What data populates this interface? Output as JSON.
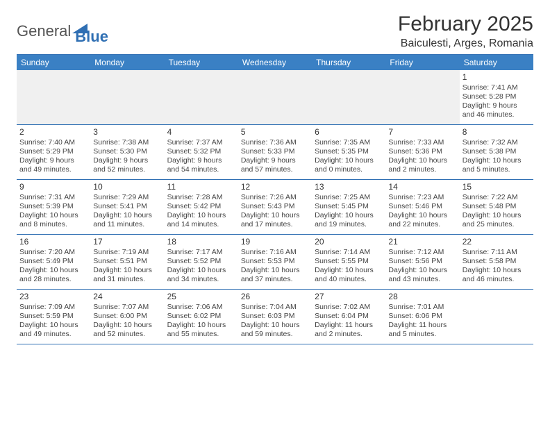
{
  "brand": {
    "word1": "General",
    "word2": "Blue"
  },
  "title": "February 2025",
  "location": "Baiculesti, Arges, Romania",
  "colors": {
    "header_bg": "#3a80c4",
    "header_text": "#ffffff",
    "rule": "#2f6fb3",
    "body_text": "#444444",
    "empty_row_bg": "#f0f0f0"
  },
  "day_names": [
    "Sunday",
    "Monday",
    "Tuesday",
    "Wednesday",
    "Thursday",
    "Friday",
    "Saturday"
  ],
  "weeks": [
    [
      null,
      null,
      null,
      null,
      null,
      null,
      {
        "n": "1",
        "sr": "Sunrise: 7:41 AM",
        "ss": "Sunset: 5:28 PM",
        "dl": "Daylight: 9 hours and 46 minutes."
      }
    ],
    [
      {
        "n": "2",
        "sr": "Sunrise: 7:40 AM",
        "ss": "Sunset: 5:29 PM",
        "dl": "Daylight: 9 hours and 49 minutes."
      },
      {
        "n": "3",
        "sr": "Sunrise: 7:38 AM",
        "ss": "Sunset: 5:30 PM",
        "dl": "Daylight: 9 hours and 52 minutes."
      },
      {
        "n": "4",
        "sr": "Sunrise: 7:37 AM",
        "ss": "Sunset: 5:32 PM",
        "dl": "Daylight: 9 hours and 54 minutes."
      },
      {
        "n": "5",
        "sr": "Sunrise: 7:36 AM",
        "ss": "Sunset: 5:33 PM",
        "dl": "Daylight: 9 hours and 57 minutes."
      },
      {
        "n": "6",
        "sr": "Sunrise: 7:35 AM",
        "ss": "Sunset: 5:35 PM",
        "dl": "Daylight: 10 hours and 0 minutes."
      },
      {
        "n": "7",
        "sr": "Sunrise: 7:33 AM",
        "ss": "Sunset: 5:36 PM",
        "dl": "Daylight: 10 hours and 2 minutes."
      },
      {
        "n": "8",
        "sr": "Sunrise: 7:32 AM",
        "ss": "Sunset: 5:38 PM",
        "dl": "Daylight: 10 hours and 5 minutes."
      }
    ],
    [
      {
        "n": "9",
        "sr": "Sunrise: 7:31 AM",
        "ss": "Sunset: 5:39 PM",
        "dl": "Daylight: 10 hours and 8 minutes."
      },
      {
        "n": "10",
        "sr": "Sunrise: 7:29 AM",
        "ss": "Sunset: 5:41 PM",
        "dl": "Daylight: 10 hours and 11 minutes."
      },
      {
        "n": "11",
        "sr": "Sunrise: 7:28 AM",
        "ss": "Sunset: 5:42 PM",
        "dl": "Daylight: 10 hours and 14 minutes."
      },
      {
        "n": "12",
        "sr": "Sunrise: 7:26 AM",
        "ss": "Sunset: 5:43 PM",
        "dl": "Daylight: 10 hours and 17 minutes."
      },
      {
        "n": "13",
        "sr": "Sunrise: 7:25 AM",
        "ss": "Sunset: 5:45 PM",
        "dl": "Daylight: 10 hours and 19 minutes."
      },
      {
        "n": "14",
        "sr": "Sunrise: 7:23 AM",
        "ss": "Sunset: 5:46 PM",
        "dl": "Daylight: 10 hours and 22 minutes."
      },
      {
        "n": "15",
        "sr": "Sunrise: 7:22 AM",
        "ss": "Sunset: 5:48 PM",
        "dl": "Daylight: 10 hours and 25 minutes."
      }
    ],
    [
      {
        "n": "16",
        "sr": "Sunrise: 7:20 AM",
        "ss": "Sunset: 5:49 PM",
        "dl": "Daylight: 10 hours and 28 minutes."
      },
      {
        "n": "17",
        "sr": "Sunrise: 7:19 AM",
        "ss": "Sunset: 5:51 PM",
        "dl": "Daylight: 10 hours and 31 minutes."
      },
      {
        "n": "18",
        "sr": "Sunrise: 7:17 AM",
        "ss": "Sunset: 5:52 PM",
        "dl": "Daylight: 10 hours and 34 minutes."
      },
      {
        "n": "19",
        "sr": "Sunrise: 7:16 AM",
        "ss": "Sunset: 5:53 PM",
        "dl": "Daylight: 10 hours and 37 minutes."
      },
      {
        "n": "20",
        "sr": "Sunrise: 7:14 AM",
        "ss": "Sunset: 5:55 PM",
        "dl": "Daylight: 10 hours and 40 minutes."
      },
      {
        "n": "21",
        "sr": "Sunrise: 7:12 AM",
        "ss": "Sunset: 5:56 PM",
        "dl": "Daylight: 10 hours and 43 minutes."
      },
      {
        "n": "22",
        "sr": "Sunrise: 7:11 AM",
        "ss": "Sunset: 5:58 PM",
        "dl": "Daylight: 10 hours and 46 minutes."
      }
    ],
    [
      {
        "n": "23",
        "sr": "Sunrise: 7:09 AM",
        "ss": "Sunset: 5:59 PM",
        "dl": "Daylight: 10 hours and 49 minutes."
      },
      {
        "n": "24",
        "sr": "Sunrise: 7:07 AM",
        "ss": "Sunset: 6:00 PM",
        "dl": "Daylight: 10 hours and 52 minutes."
      },
      {
        "n": "25",
        "sr": "Sunrise: 7:06 AM",
        "ss": "Sunset: 6:02 PM",
        "dl": "Daylight: 10 hours and 55 minutes."
      },
      {
        "n": "26",
        "sr": "Sunrise: 7:04 AM",
        "ss": "Sunset: 6:03 PM",
        "dl": "Daylight: 10 hours and 59 minutes."
      },
      {
        "n": "27",
        "sr": "Sunrise: 7:02 AM",
        "ss": "Sunset: 6:04 PM",
        "dl": "Daylight: 11 hours and 2 minutes."
      },
      {
        "n": "28",
        "sr": "Sunrise: 7:01 AM",
        "ss": "Sunset: 6:06 PM",
        "dl": "Daylight: 11 hours and 5 minutes."
      },
      null
    ]
  ]
}
